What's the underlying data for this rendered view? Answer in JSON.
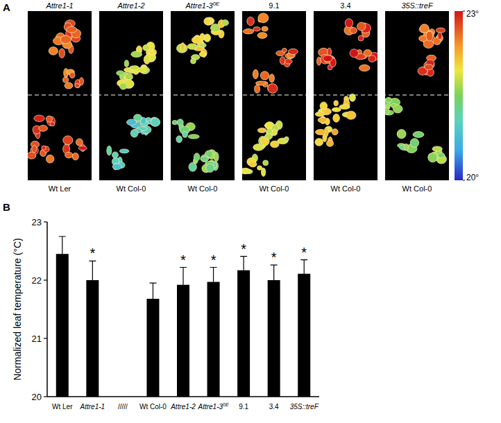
{
  "chart_data": [
    {
      "type": "thermal_image",
      "panel_label": "A",
      "top_labels": [
        "Attre1-1",
        "Attre1-2",
        "Attre1-3",
        "9.1",
        "3.4",
        "35S::treF"
      ],
      "top_superscripts": [
        null,
        null,
        "0E",
        null,
        null,
        null
      ],
      "bottom_labels": [
        "Wt Ler",
        "Wt Col-0",
        "Wt Col-0",
        "Wt Col-0",
        "Wt Col-0",
        "Wt Col-0"
      ],
      "top_temperatures": [
        22.6,
        21.8,
        21.9,
        22.7,
        22.8,
        22.7
      ],
      "bottom_temperatures": [
        22.8,
        21.0,
        21.4,
        21.9,
        22.1,
        21.5
      ],
      "colorbar_range": [
        20,
        23
      ],
      "colorbar_ticks": [
        {
          "value": 23,
          "label": "23°"
        },
        {
          "value": 20,
          "label": "20°"
        }
      ]
    },
    {
      "type": "bar",
      "panel_label": "B",
      "y_label": "Normalized leaf temperature (°C)",
      "categories": [
        "Wt Ler",
        "Attre1-1",
        "/////",
        "Wt Col-0",
        "Attre1-2",
        "Attre1-3",
        "9.1",
        "3.4",
        "35S::treF"
      ],
      "category_superscripts": [
        null,
        null,
        null,
        null,
        null,
        "0E",
        null,
        null,
        null
      ],
      "values": [
        22.45,
        22.0,
        null,
        21.68,
        21.92,
        21.97,
        22.17,
        22.0,
        22.11
      ],
      "errors": [
        0.3,
        0.33,
        null,
        0.27,
        0.3,
        0.25,
        0.24,
        0.26,
        0.24
      ],
      "annotations": [
        null,
        "*",
        null,
        null,
        "*",
        "*",
        "*",
        "*",
        "*"
      ],
      "color": "#000000",
      "ylim": [
        20,
        23
      ],
      "yticks": [
        20,
        21,
        22,
        23
      ]
    }
  ]
}
